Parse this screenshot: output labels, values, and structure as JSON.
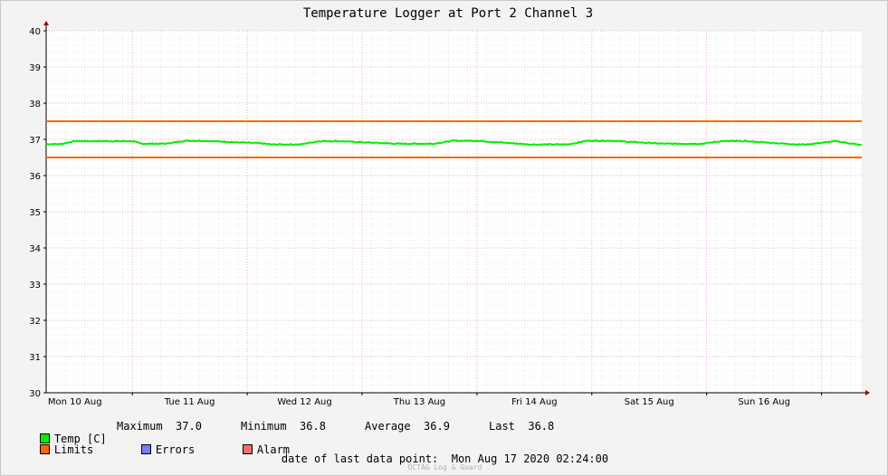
{
  "chart_data": {
    "type": "line",
    "title": "Temperature Logger at Port 2 Channel 3",
    "ylim": [
      30,
      40
    ],
    "y_ticks": [
      "30",
      "31",
      "32",
      "33",
      "34",
      "35",
      "36",
      "37",
      "38",
      "39",
      "40"
    ],
    "x_range_hours": [
      0,
      170.4
    ],
    "x_tick_labels": [
      "Mon 10 Aug",
      "Tue 11 Aug",
      "Wed 12 Aug",
      "Thu 13 Aug",
      "Fri 14 Aug",
      "Sat 15 Aug",
      "Sun 16 Aug"
    ],
    "grid": true,
    "series": [
      {
        "name": "Temp [C]",
        "color": "#00ee00",
        "x": [
          0,
          3,
          6,
          18,
          20,
          25,
          29,
          33,
          45,
          47,
          53,
          57,
          61,
          73,
          75,
          81,
          85,
          90,
          101,
          103,
          109,
          113,
          118,
          129,
          131,
          137,
          141,
          146,
          157,
          159,
          165,
          170.4
        ],
        "y": [
          36.87,
          36.87,
          36.95,
          36.95,
          36.88,
          36.88,
          36.96,
          36.96,
          36.89,
          36.86,
          36.86,
          36.95,
          36.95,
          36.88,
          36.88,
          36.88,
          36.96,
          36.96,
          36.86,
          36.86,
          36.86,
          36.96,
          36.96,
          36.88,
          36.88,
          36.88,
          36.95,
          36.95,
          36.86,
          36.86,
          36.95,
          36.84
        ]
      },
      {
        "name": "Limits",
        "color": "#ff6600",
        "upper": 37.5,
        "lower": 36.5
      },
      {
        "name": "Errors",
        "color": "#7080ff"
      },
      {
        "name": "Alarm",
        "color": "#f07070"
      }
    ]
  },
  "legend": {
    "temp_label": "Temp [C]",
    "limits_label": "Limits",
    "errors_label": "Errors",
    "alarm_label": "Alarm",
    "maximum_label": "Maximum",
    "maximum_value": "37.0",
    "minimum_label": "Minimum",
    "minimum_value": "36.8",
    "average_label": "Average",
    "average_value": "36.9",
    "last_label": "Last",
    "last_value": "36.8"
  },
  "footer": {
    "last_point_label": "date of last data point:",
    "last_point_value": "Mon Aug 17 2020 02:24:00",
    "watermark": "OCTA& Log & Guard"
  }
}
